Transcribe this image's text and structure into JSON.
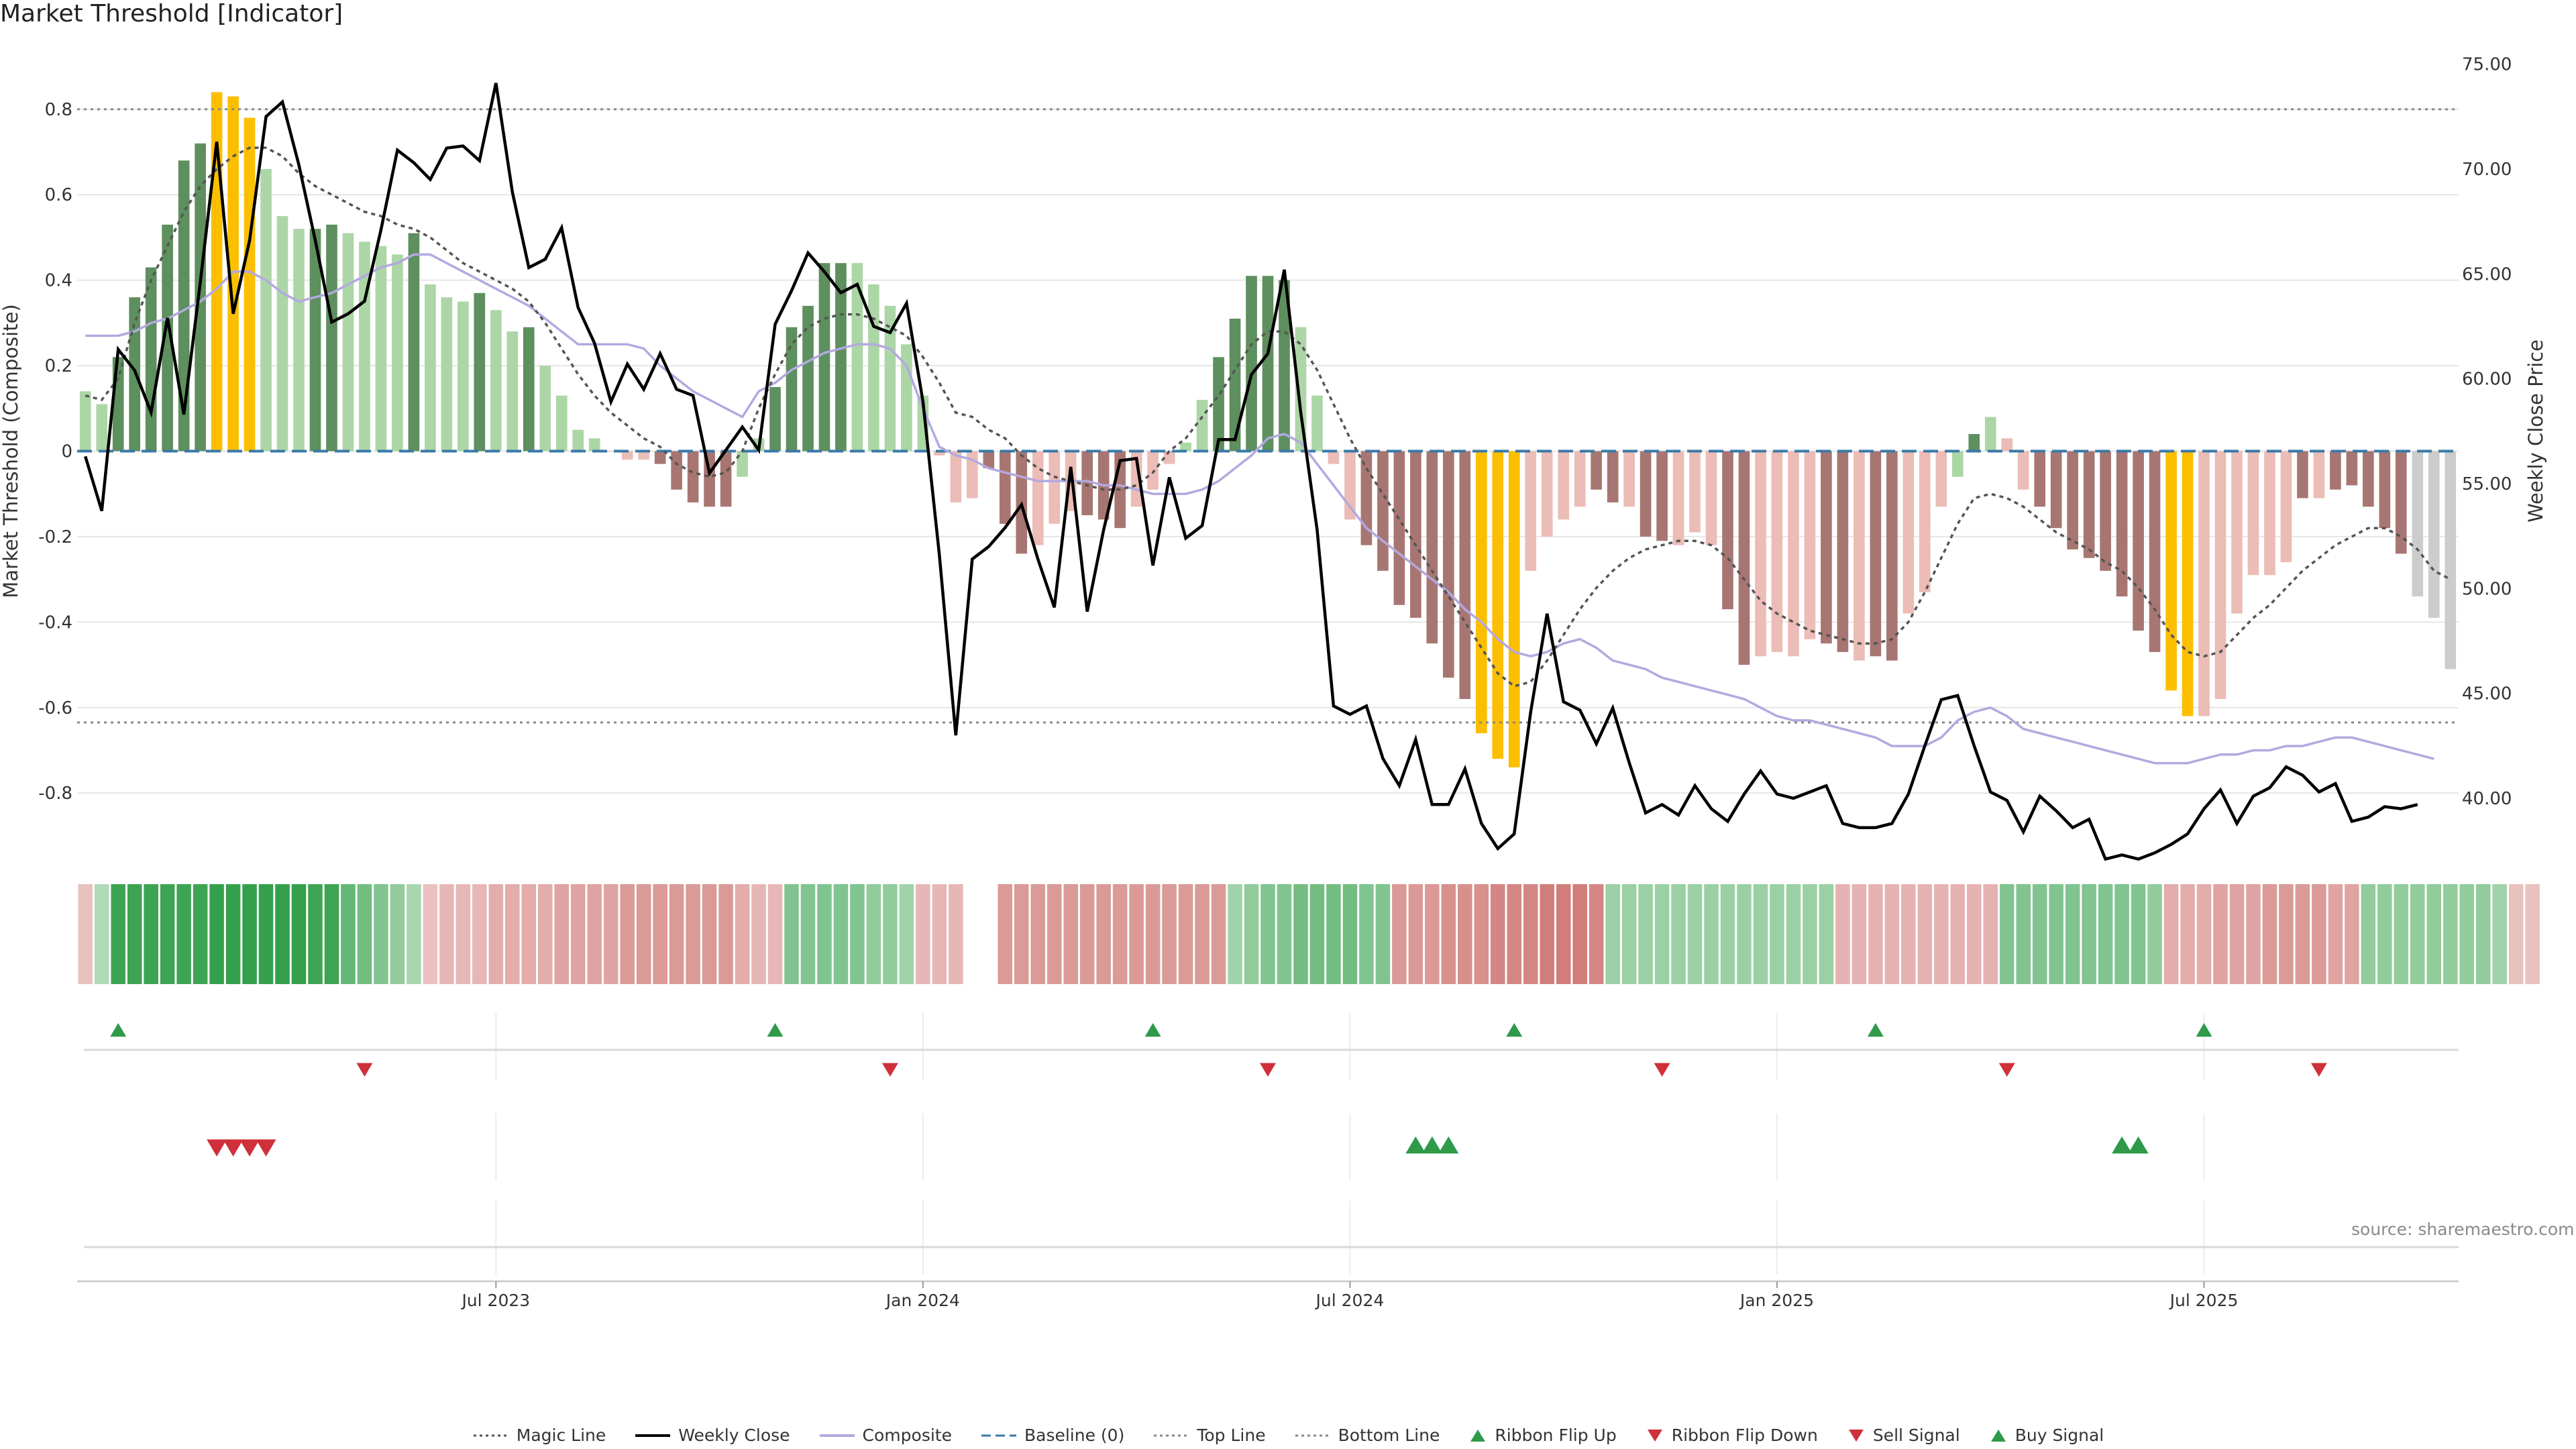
{
  "title": "Market Threshold [Indicator]",
  "source_text": "source: sharemaestro.com",
  "colors": {
    "strong_green": "#5e8f5e",
    "light_green": "#acd6a6",
    "strong_red": "#a87672",
    "light_red": "#ecbcb6",
    "gold": "#fbbf00",
    "magic_line": "#555555",
    "weekly_close": "#000000",
    "composite": "#b3a9e0",
    "baseline": "#3a7aa8",
    "threshold_lines": "#888888",
    "signal_green": "#2e9a4a",
    "signal_red": "#d0303a"
  },
  "legend": [
    {
      "label": "Magic Line",
      "kind": "dotted-line",
      "color": "#555555"
    },
    {
      "label": "Weekly Close",
      "kind": "solid-line",
      "color": "#000000"
    },
    {
      "label": "Composite",
      "kind": "solid-line",
      "color": "#b3a9e0"
    },
    {
      "label": "Baseline (0)",
      "kind": "dashed-line",
      "color": "#3a7aa8"
    },
    {
      "label": "Top Line",
      "kind": "dotted-line",
      "color": "#888888"
    },
    {
      "label": "Bottom Line",
      "kind": "dotted-line",
      "color": "#888888"
    },
    {
      "label": "Ribbon Flip Up",
      "kind": "triangle-up",
      "color": "#2e9a4a"
    },
    {
      "label": "Ribbon Flip Down",
      "kind": "triangle-down",
      "color": "#d0303a"
    },
    {
      "label": "Sell Signal",
      "kind": "triangle-down",
      "color": "#d0303a"
    },
    {
      "label": "Buy Signal",
      "kind": "triangle-up",
      "color": "#2e9a4a"
    }
  ],
  "chart_data": {
    "type": "bar",
    "x_start": "2023-01-06",
    "x_interval": "weekly",
    "left_axis": {
      "label": "Market Threshold (Composite)",
      "ticks": [
        0.8,
        0.6,
        0.4,
        0.2,
        0,
        -0.2,
        -0.4,
        -0.6,
        -0.8
      ],
      "range": [
        -0.93,
        0.93
      ]
    },
    "right_axis": {
      "label": "Weekly Close Price",
      "ticks": [
        "75.00",
        "70.00",
        "65.00",
        "60.00",
        "55.00",
        "50.00",
        "45.00",
        "40.00"
      ],
      "range": [
        37.6,
        75.5
      ]
    },
    "x_ticks": [
      "Jul 2023",
      "Jan 2024",
      "Jul 2024",
      "Jan 2025",
      "Jul 2025"
    ],
    "top_line": 0.8,
    "bottom_line": -0.635,
    "histogram": [
      0.14,
      0.11,
      0.22,
      0.36,
      0.43,
      0.53,
      0.68,
      0.72,
      0.84,
      0.83,
      0.78,
      0.66,
      0.55,
      0.52,
      0.52,
      0.53,
      0.51,
      0.49,
      0.48,
      0.46,
      0.51,
      0.39,
      0.36,
      0.35,
      0.37,
      0.33,
      0.28,
      0.29,
      0.2,
      0.13,
      0.05,
      0.03,
      0,
      -0.02,
      -0.02,
      -0.03,
      -0.09,
      -0.12,
      -0.13,
      -0.13,
      -0.06,
      0.03,
      0.15,
      0.29,
      0.34,
      0.44,
      0.44,
      0.44,
      0.39,
      0.34,
      0.25,
      0.13,
      -0.01,
      -0.12,
      -0.11,
      -0.04,
      -0.17,
      -0.24,
      -0.22,
      -0.17,
      -0.14,
      -0.15,
      -0.16,
      -0.18,
      -0.13,
      -0.09,
      -0.03,
      0.02,
      0.12,
      0.22,
      0.31,
      0.41,
      0.41,
      0.4,
      0.29,
      0.13,
      -0.03,
      -0.16,
      -0.22,
      -0.28,
      -0.36,
      -0.39,
      -0.45,
      -0.53,
      -0.58,
      -0.66,
      -0.72,
      -0.74,
      -0.28,
      -0.2,
      -0.16,
      -0.13,
      -0.09,
      -0.12,
      -0.13,
      -0.2,
      -0.21,
      -0.22,
      -0.19,
      -0.22,
      -0.37,
      -0.5,
      -0.48,
      -0.47,
      -0.48,
      -0.44,
      -0.45,
      -0.47,
      -0.49,
      -0.48,
      -0.49,
      -0.38,
      -0.33,
      -0.13,
      -0.06,
      0.04,
      0.08,
      0.03,
      -0.09,
      -0.13,
      -0.18,
      -0.23,
      -0.25,
      -0.28,
      -0.34,
      -0.42,
      -0.47,
      -0.56,
      -0.62,
      -0.62,
      -0.58,
      -0.38,
      -0.29,
      -0.29,
      -0.26,
      -0.11,
      -0.11,
      -0.09,
      -0.08,
      -0.13,
      -0.18,
      -0.24,
      -0.34,
      -0.39,
      -0.51
    ],
    "histogram_colors": [
      "light_green",
      "light_green",
      "strong_green",
      "strong_green",
      "strong_green",
      "strong_green",
      "strong_green",
      "strong_green",
      "gold",
      "gold",
      "gold",
      "light_green",
      "light_green",
      "light_green",
      "strong_green",
      "strong_green",
      "light_green",
      "light_green",
      "light_green",
      "light_green",
      "strong_green",
      "light_green",
      "light_green",
      "light_green",
      "strong_green",
      "light_green",
      "light_green",
      "strong_green",
      "light_green",
      "light_green",
      "light_green",
      "light_green",
      "light_red",
      "light_red",
      "light_red",
      "strong_red",
      "strong_red",
      "strong_red",
      "strong_red",
      "strong_red",
      "light_green",
      "light_green",
      "strong_green",
      "strong_green",
      "strong_green",
      "strong_green",
      "strong_green",
      "light_green",
      "light_green",
      "light_green",
      "light_green",
      "light_green",
      "light_red",
      "light_red",
      "light_red",
      "strong_red",
      "strong_red",
      "strong_red",
      "light_red",
      "light_red",
      "light_red",
      "strong_red",
      "strong_red",
      "strong_red",
      "light_red",
      "light_red",
      "light_red",
      "light_green",
      "light_green",
      "strong_green",
      "strong_green",
      "strong_green",
      "strong_green",
      "strong_green",
      "light_green",
      "light_green",
      "light_red",
      "light_red",
      "strong_red",
      "strong_red",
      "strong_red",
      "strong_red",
      "strong_red",
      "strong_red",
      "strong_red",
      "gold",
      "gold",
      "gold",
      "light_red",
      "light_red",
      "light_red",
      "light_red",
      "strong_red",
      "strong_red",
      "light_red",
      "strong_red",
      "strong_red",
      "light_red",
      "light_red",
      "light_red",
      "strong_red",
      "strong_red",
      "light_red",
      "light_red",
      "light_red",
      "light_red",
      "strong_red",
      "strong_red",
      "light_red",
      "strong_red",
      "strong_red",
      "light_red",
      "light_red",
      "light_red",
      "light_green",
      "strong_green",
      "light_green",
      "light_red",
      "light_red",
      "strong_red",
      "strong_red",
      "strong_red",
      "strong_red",
      "strong_red",
      "strong_red",
      "strong_red",
      "strong_red",
      "gold",
      "gold",
      "light_red",
      "light_red",
      "light_red",
      "light_red",
      "light_red",
      "light_red",
      "strong_red",
      "light_red",
      "strong_red",
      "strong_red",
      "strong_red",
      "strong_red",
      "strong_red"
    ],
    "magic_line": [
      0.13,
      0.12,
      0.17,
      0.3,
      0.4,
      0.48,
      0.56,
      0.62,
      0.66,
      0.69,
      0.71,
      0.71,
      0.69,
      0.65,
      0.62,
      0.6,
      0.58,
      0.56,
      0.55,
      0.53,
      0.52,
      0.5,
      0.47,
      0.44,
      0.42,
      0.4,
      0.38,
      0.35,
      0.3,
      0.24,
      0.18,
      0.13,
      0.09,
      0.06,
      0.03,
      0.01,
      -0.03,
      -0.05,
      -0.06,
      -0.05,
      0.0,
      0.1,
      0.18,
      0.25,
      0.29,
      0.31,
      0.32,
      0.32,
      0.31,
      0.29,
      0.27,
      0.22,
      0.16,
      0.09,
      0.08,
      0.05,
      0.03,
      -0.01,
      -0.04,
      -0.06,
      -0.07,
      -0.08,
      -0.09,
      -0.09,
      -0.08,
      -0.05,
      0.0,
      0.03,
      0.08,
      0.13,
      0.19,
      0.25,
      0.28,
      0.28,
      0.25,
      0.19,
      0.11,
      0.03,
      -0.04,
      -0.1,
      -0.16,
      -0.22,
      -0.28,
      -0.34,
      -0.4,
      -0.46,
      -0.52,
      -0.55,
      -0.54,
      -0.49,
      -0.43,
      -0.37,
      -0.32,
      -0.28,
      -0.25,
      -0.23,
      -0.22,
      -0.21,
      -0.21,
      -0.22,
      -0.25,
      -0.3,
      -0.35,
      -0.38,
      -0.4,
      -0.42,
      -0.43,
      -0.44,
      -0.45,
      -0.45,
      -0.44,
      -0.4,
      -0.33,
      -0.25,
      -0.17,
      -0.11,
      -0.1,
      -0.11,
      -0.13,
      -0.16,
      -0.19,
      -0.21,
      -0.23,
      -0.26,
      -0.28,
      -0.32,
      -0.37,
      -0.43,
      -0.47,
      -0.48,
      -0.47,
      -0.43,
      -0.39,
      -0.36,
      -0.32,
      -0.28,
      -0.25,
      -0.22,
      -0.2,
      -0.18,
      -0.18,
      -0.2,
      -0.23,
      -0.28,
      -0.3
    ],
    "composite": [
      0.27,
      0.27,
      0.27,
      0.28,
      0.3,
      0.31,
      0.33,
      0.35,
      0.38,
      0.42,
      0.42,
      0.4,
      0.37,
      0.35,
      0.36,
      0.37,
      0.39,
      0.41,
      0.43,
      0.44,
      0.46,
      0.46,
      0.44,
      0.42,
      0.4,
      0.38,
      0.36,
      0.34,
      0.31,
      0.28,
      0.25,
      0.25,
      0.25,
      0.25,
      0.24,
      0.2,
      0.17,
      0.14,
      0.12,
      0.1,
      0.08,
      0.14,
      0.16,
      0.19,
      0.21,
      0.23,
      0.24,
      0.25,
      0.25,
      0.24,
      0.2,
      0.1,
      0.01,
      -0.01,
      -0.02,
      -0.04,
      -0.05,
      -0.06,
      -0.07,
      -0.07,
      -0.07,
      -0.07,
      -0.08,
      -0.08,
      -0.09,
      -0.1,
      -0.1,
      -0.1,
      -0.09,
      -0.07,
      -0.04,
      -0.01,
      0.03,
      0.04,
      0.02,
      -0.03,
      -0.08,
      -0.13,
      -0.18,
      -0.21,
      -0.24,
      -0.27,
      -0.3,
      -0.33,
      -0.37,
      -0.4,
      -0.44,
      -0.47,
      -0.48,
      -0.47,
      -0.45,
      -0.44,
      -0.46,
      -0.49,
      -0.5,
      -0.51,
      -0.53,
      -0.54,
      -0.55,
      -0.56,
      -0.57,
      -0.58,
      -0.6,
      -0.62,
      -0.63,
      -0.63,
      -0.64,
      -0.65,
      -0.66,
      -0.67,
      -0.69,
      -0.69,
      -0.69,
      -0.67,
      -0.63,
      -0.61,
      -0.6,
      -0.62,
      -0.65,
      -0.66,
      -0.67,
      -0.68,
      -0.69,
      -0.7,
      -0.71,
      -0.72,
      -0.73,
      -0.73,
      -0.73,
      -0.72,
      -0.71,
      -0.71,
      -0.7,
      -0.7,
      -0.69,
      -0.69,
      -0.68,
      -0.67,
      -0.67,
      -0.68,
      -0.69,
      -0.7,
      -0.71,
      -0.72
    ],
    "weekly_close": [
      56.3,
      53.7,
      61.4,
      60.4,
      58.4,
      62.9,
      58.3,
      64.6,
      71.3,
      63.1,
      66.6,
      72.5,
      73.2,
      70.2,
      66.6,
      62.7,
      63.1,
      63.7,
      67.1,
      70.9,
      70.3,
      69.5,
      71.0,
      71.1,
      70.4,
      74.1,
      68.9,
      65.3,
      65.7,
      67.2,
      63.4,
      61.7,
      58.9,
      60.7,
      59.5,
      61.2,
      59.5,
      59.2,
      55.5,
      56.6,
      57.7,
      56.6,
      62.6,
      64.2,
      66.0,
      65.1,
      64.1,
      64.5,
      62.5,
      62.2,
      63.6,
      58.9,
      51.6,
      43.0,
      51.4,
      52.0,
      52.9,
      54.0,
      51.4,
      49.1,
      55.8,
      48.9,
      52.8,
      56.1,
      56.2,
      51.1,
      55.3,
      52.4,
      53.0,
      57.1,
      57.1,
      60.2,
      61.2,
      65.2,
      58.4,
      52.8,
      44.4,
      44.0,
      44.4,
      41.9,
      40.6,
      42.8,
      39.7,
      39.7,
      41.4,
      38.8,
      37.6,
      38.3,
      44.1,
      48.8,
      44.6,
      44.2,
      42.6,
      44.3,
      41.7,
      39.3,
      39.7,
      39.2,
      40.6,
      39.5,
      38.9,
      40.2,
      41.3,
      40.2,
      40.0,
      40.3,
      40.6,
      38.8,
      38.6,
      38.6,
      38.8,
      40.2,
      42.5,
      44.7,
      44.9,
      42.5,
      40.3,
      39.9,
      38.4,
      40.1,
      39.4,
      38.6,
      39.0,
      37.1,
      37.3,
      37.1,
      37.4,
      37.8,
      38.3,
      39.5,
      40.4,
      38.8,
      40.1,
      40.5,
      41.5,
      41.1,
      40.3,
      40.7,
      38.9,
      39.1,
      39.6,
      39.5,
      39.7
    ],
    "ribbon_values": [
      -0.15,
      0.15,
      0.52,
      0.52,
      0.52,
      0.52,
      0.52,
      0.52,
      0.55,
      0.55,
      0.55,
      0.55,
      0.55,
      0.55,
      0.52,
      0.52,
      0.4,
      0.35,
      0.3,
      0.25,
      0.18,
      -0.15,
      -0.2,
      -0.2,
      -0.2,
      -0.25,
      -0.25,
      -0.25,
      -0.25,
      -0.3,
      -0.3,
      -0.3,
      -0.3,
      -0.35,
      -0.35,
      -0.35,
      -0.35,
      -0.35,
      -0.35,
      -0.35,
      -0.25,
      -0.2,
      -0.2,
      0.3,
      0.3,
      0.3,
      0.3,
      0.3,
      0.25,
      0.25,
      0.2,
      -0.2,
      -0.2,
      -0.2,
      null,
      null,
      -0.35,
      -0.35,
      -0.35,
      -0.35,
      -0.35,
      -0.35,
      -0.35,
      -0.35,
      -0.35,
      -0.35,
      -0.35,
      -0.35,
      -0.35,
      -0.35,
      0.2,
      0.25,
      0.3,
      0.3,
      0.35,
      0.35,
      0.35,
      0.35,
      0.3,
      0.3,
      -0.35,
      -0.35,
      -0.35,
      -0.4,
      -0.4,
      -0.4,
      -0.45,
      -0.45,
      -0.45,
      -0.5,
      -0.5,
      -0.5,
      -0.45,
      0.22,
      0.22,
      0.22,
      0.22,
      0.22,
      0.22,
      0.22,
      0.22,
      0.22,
      0.22,
      0.22,
      0.22,
      0.22,
      0.22,
      -0.22,
      -0.22,
      -0.22,
      -0.22,
      -0.22,
      -0.22,
      -0.22,
      -0.22,
      -0.22,
      -0.22,
      0.3,
      0.3,
      0.3,
      0.3,
      0.3,
      0.3,
      0.3,
      0.3,
      0.3,
      0.25,
      -0.25,
      -0.25,
      -0.25,
      -0.3,
      -0.3,
      -0.3,
      -0.35,
      -0.35,
      -0.35,
      -0.35,
      -0.3,
      -0.3,
      0.25,
      0.25,
      0.25,
      0.25,
      0.25,
      0.25,
      0.25,
      0.25,
      0.2,
      -0.15,
      -0.15
    ],
    "ribbon_flip_up": [
      2,
      42,
      65,
      87,
      109,
      129
    ],
    "ribbon_flip_down": [
      17,
      49,
      72,
      96,
      117,
      136
    ],
    "sell_signals": [
      8,
      9,
      10,
      11
    ],
    "buy_signals": [
      81,
      82,
      83,
      124,
      125
    ]
  }
}
